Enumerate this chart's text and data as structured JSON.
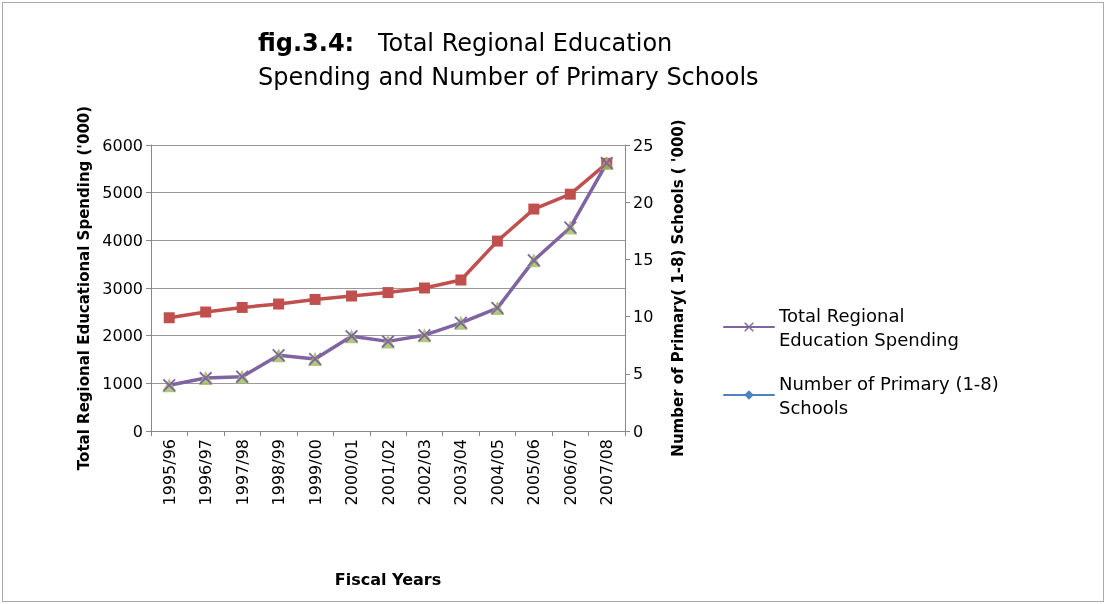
{
  "chart_data": {
    "type": "line",
    "title": "fig.3.4:   Total Regional Education Spending and Number of Primary Schools",
    "xlabel": "Fiscal Years",
    "ylabel": "Total Regional Educational Spending ('000)",
    "y2label": "Number of Primary( 1-8) Schools ( '000)",
    "categories": [
      "1995/96",
      "1996/97",
      "1997/98",
      "1998/99",
      "1999/00",
      "2000/01",
      "2001/02",
      "2002/03",
      "2003/04",
      "2004/05",
      "2005/06",
      "2006/07",
      "2007/08"
    ],
    "series": [
      {
        "color": "#c0504d",
        "marker": "square",
        "axis": "y2",
        "values": [
          9.9,
          10.4,
          10.8,
          11.1,
          11.5,
          11.8,
          12.1,
          12.5,
          13.2,
          16.6,
          19.4,
          20.7,
          23.4
        ]
      },
      {
        "type": "scatter",
        "color": "#9bbb59",
        "marker": "triangle",
        "values": [
          960,
          1110,
          1140,
          1590,
          1510,
          1990,
          1880,
          2010,
          2270,
          2580,
          3580,
          4270,
          5620
        ]
      },
      {
        "name": "Total Regional  Education Spending",
        "color": "#8064a2",
        "marker": "cross",
        "values": [
          960,
          1110,
          1140,
          1590,
          1510,
          1990,
          1880,
          2010,
          2270,
          2580,
          3580,
          4270,
          5620
        ]
      },
      {
        "name": "Number of Primary (1-8) Schools",
        "color": "#4f81bd",
        "marker": "diamond",
        "values": [
          null,
          null,
          null,
          null,
          null,
          null,
          null,
          null,
          null,
          null,
          null,
          null,
          null
        ]
      }
    ],
    "ylim": [
      0,
      6000
    ],
    "yticks": [
      0,
      1000,
      2000,
      3000,
      4000,
      5000,
      6000
    ],
    "y2lim": [
      0,
      25
    ],
    "y2ticks": [
      0,
      5,
      10,
      15,
      20,
      25
    ],
    "grid": "y",
    "legend": "right",
    "line_style": "solid"
  }
}
